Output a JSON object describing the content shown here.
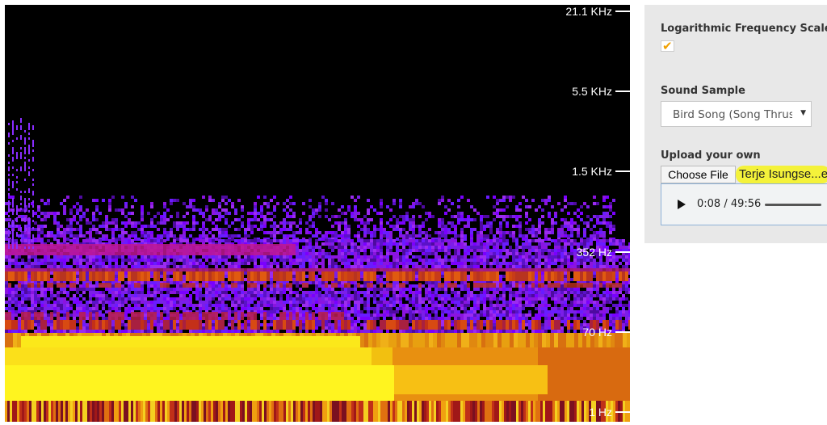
{
  "spectrogram": {
    "axis_ticks": [
      "21.1 KHz",
      "5.5 KHz",
      "1.5 KHz",
      "352 Hz",
      "70 Hz",
      "1 Hz"
    ]
  },
  "controls": {
    "log_scale_label": "Logarithmic Frequency Scale?",
    "log_scale_checked": true,
    "sound_sample_label": "Sound Sample",
    "sound_sample_value": "Bird Song (Song Thrush",
    "upload_label": "Upload your own",
    "choose_file_label": "Choose File",
    "file_name": "Terje Isungse...e"
  },
  "player": {
    "time": "0:08 / 49:56"
  },
  "colors": {
    "panel_bg": "#e8e8e8",
    "highlight": "#f4f23a",
    "check": "#f0a000"
  }
}
